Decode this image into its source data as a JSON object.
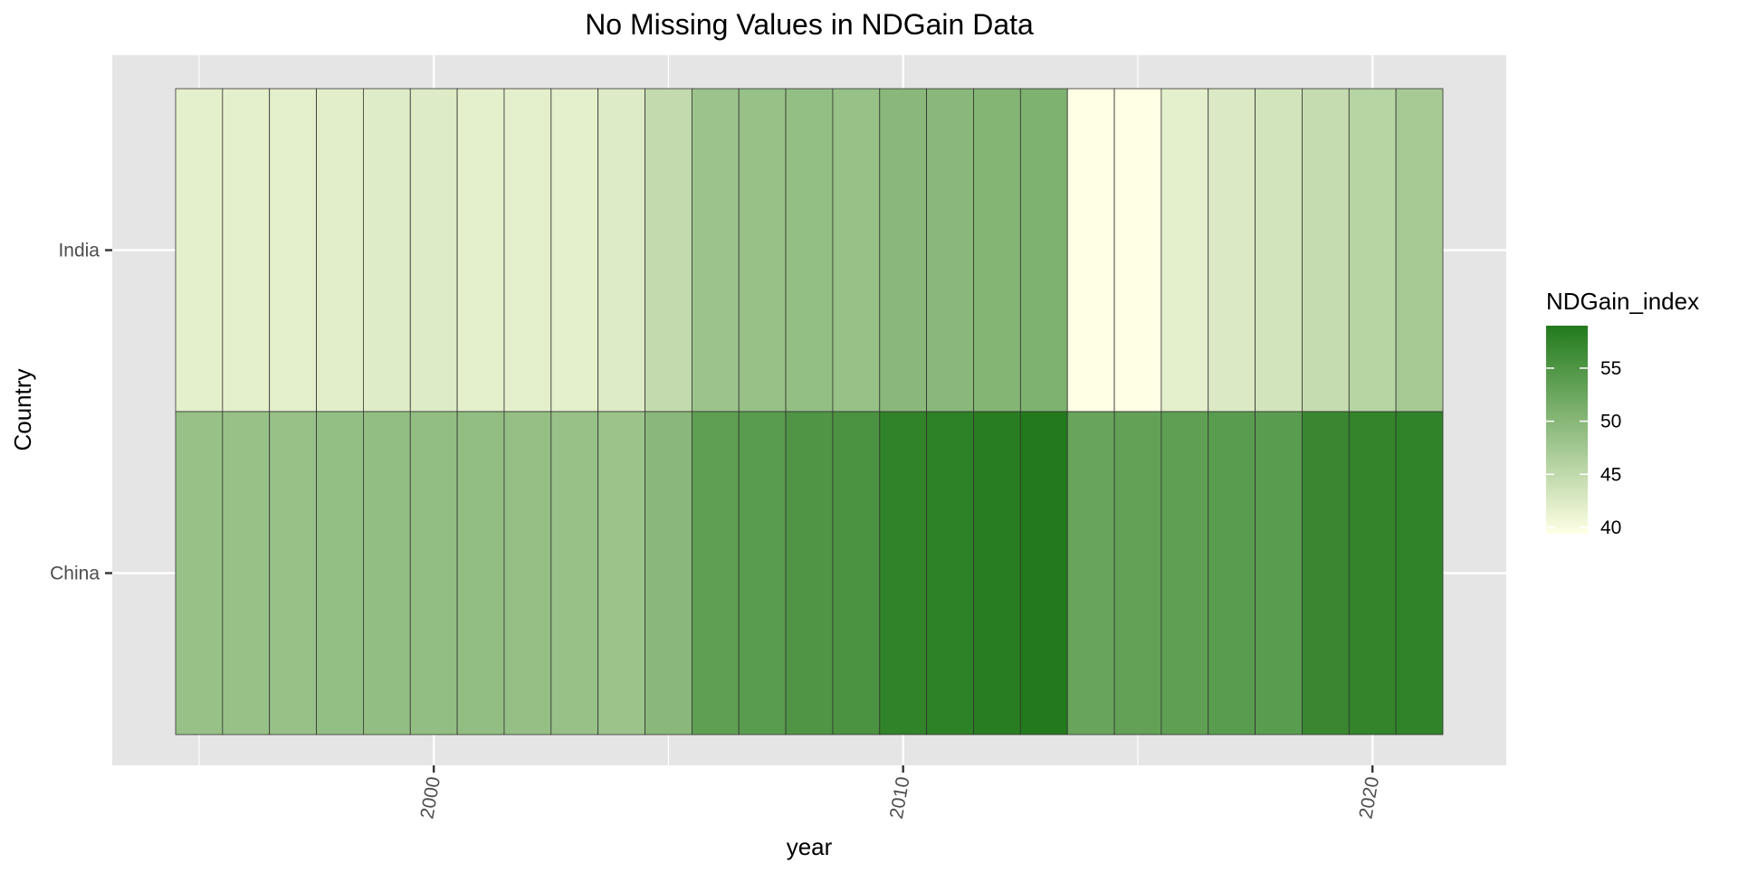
{
  "chart_data": {
    "type": "heatmap",
    "title": "No Missing Values in NDGain Data",
    "xlabel": "year",
    "ylabel": "Country",
    "x": [
      1995,
      1996,
      1997,
      1998,
      1999,
      2000,
      2001,
      2002,
      2003,
      2004,
      2005,
      2006,
      2007,
      2008,
      2009,
      2010,
      2011,
      2012,
      2013,
      2014,
      2015,
      2016,
      2017,
      2018,
      2019,
      2020,
      2021
    ],
    "xlim": [
      1994,
      2022
    ],
    "x_ticks": [
      2000,
      2010,
      2020
    ],
    "x_tick_labels": [
      "2000",
      "2010",
      "2020"
    ],
    "y_categories": [
      "China",
      "India"
    ],
    "series": [
      {
        "name": "India",
        "values": [
          41.8,
          41.8,
          41.8,
          42.0,
          42.2,
          42.4,
          41.8,
          41.8,
          41.8,
          42.4,
          44.8,
          48.2,
          48.6,
          48.9,
          48.6,
          49.8,
          49.8,
          50.3,
          50.8,
          39.4,
          39.4,
          41.8,
          42.6,
          43.4,
          44.6,
          45.8,
          47.2
        ]
      },
      {
        "name": "China",
        "values": [
          48.6,
          48.6,
          48.6,
          48.9,
          49.0,
          49.0,
          49.0,
          48.8,
          48.6,
          48.3,
          49.8,
          53.6,
          54.0,
          55.0,
          55.4,
          57.7,
          58.0,
          58.5,
          59.0,
          52.8,
          53.3,
          53.6,
          54.0,
          54.0,
          57.0,
          57.5,
          57.7
        ]
      }
    ],
    "color_scale": {
      "low": "#ffffe5",
      "high": "#227a1c",
      "domain": [
        39.4,
        59.0
      ]
    },
    "legend": {
      "title": "NDGain_index",
      "position": "right",
      "ticks": [
        40,
        45,
        50,
        55
      ],
      "tick_labels": [
        "40",
        "45",
        "50",
        "55"
      ]
    },
    "grid": true
  }
}
